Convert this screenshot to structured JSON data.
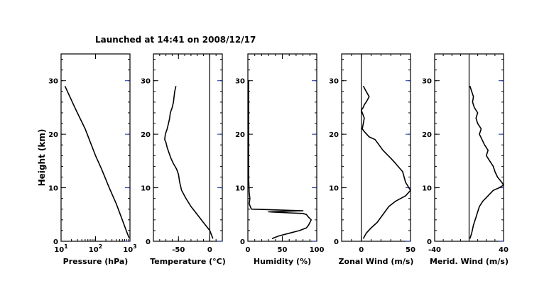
{
  "title": "Launched at 14:41 on 2008/12/17",
  "ylabel": "Height (km)",
  "colors": {
    "ink": "#000000",
    "right_ticks": "#1a2fa0",
    "background": "#ffffff"
  },
  "chart_data": [
    {
      "type": "line",
      "xlabel": "Pressure (hPa)",
      "xscale": "log",
      "xlim": [
        10,
        1000
      ],
      "xticks": [
        {
          "v": 10,
          "b": "10",
          "e": "1"
        },
        {
          "v": 100,
          "b": "10",
          "e": "2"
        },
        {
          "v": 1000,
          "b": "10",
          "e": "3"
        }
      ],
      "ylim": [
        0,
        35
      ],
      "yticks": [
        0,
        10,
        20,
        30
      ],
      "x": [
        13,
        25,
        50,
        100,
        150,
        250,
        400,
        600,
        800,
        950
      ],
      "y": [
        29,
        25,
        21,
        16,
        13.5,
        10,
        7,
        4,
        1.8,
        0.6
      ]
    },
    {
      "type": "line",
      "xlabel": "Temperature (°C)",
      "xlim": [
        -90,
        20
      ],
      "xticks": [
        -50,
        0
      ],
      "zero_line": 0,
      "ylim": [
        0,
        35
      ],
      "yticks": [
        0,
        10,
        20,
        30
      ],
      "x": [
        5,
        0,
        -10,
        -20,
        -30,
        -38,
        -45,
        -48,
        -50,
        -53,
        -58,
        -62,
        -65,
        -68,
        -70,
        -72,
        -71,
        -68,
        -66,
        -64,
        -63,
        -60,
        -58,
        -57,
        -56,
        -55,
        -54
      ],
      "y": [
        0.5,
        2,
        3.5,
        5,
        6.5,
        8,
        9.5,
        11,
        12.5,
        13.5,
        14.5,
        15.5,
        16.5,
        17.5,
        18.5,
        19,
        20,
        21,
        22,
        23,
        24,
        25,
        26,
        27,
        28,
        28.5,
        29
      ]
    },
    {
      "type": "line",
      "xlabel": "Humidity (%)",
      "xlim": [
        0,
        100
      ],
      "xticks": [
        0,
        50,
        100
      ],
      "ylim": [
        0,
        35
      ],
      "yticks": [
        0,
        10,
        20,
        30
      ],
      "x": [
        35,
        45,
        60,
        75,
        85,
        88,
        90,
        92,
        88,
        85,
        80,
        60,
        30,
        80,
        5,
        2,
        3,
        2,
        1,
        1,
        1,
        1
      ],
      "y": [
        0.5,
        1,
        1.5,
        2,
        2.5,
        3,
        3.5,
        4,
        4.5,
        5,
        5.2,
        5.3,
        5.5,
        5.7,
        6,
        7,
        8,
        9,
        12,
        18,
        25,
        30
      ]
    },
    {
      "type": "line",
      "xlabel": "Zonal Wind (m/s)",
      "xlim": [
        -20,
        50
      ],
      "xticks": [
        0,
        50
      ],
      "zero_line": 0,
      "ylim": [
        0,
        35
      ],
      "yticks": [
        0,
        10,
        20,
        30
      ],
      "x": [
        2,
        5,
        10,
        16,
        20,
        24,
        28,
        35,
        45,
        50,
        45,
        42,
        35,
        30,
        22,
        18,
        14,
        8,
        3,
        1,
        2,
        3,
        1,
        0,
        2,
        3,
        5,
        8,
        5,
        2
      ],
      "y": [
        0.5,
        1.5,
        2.5,
        3.5,
        4.5,
        5.5,
        6.5,
        7.5,
        8.5,
        9.5,
        11,
        13,
        14.5,
        15.5,
        17,
        18,
        19,
        19.5,
        20.5,
        21,
        22,
        23,
        24,
        24.5,
        25,
        25.5,
        26,
        27,
        28,
        29
      ]
    },
    {
      "type": "line",
      "xlabel": "Merid. Wind (m/s)",
      "xlim": [
        -40,
        40
      ],
      "xticks": [
        -40,
        40
      ],
      "zero_line": 0,
      "ylim": [
        0,
        35
      ],
      "yticks": [
        0,
        10,
        20,
        30
      ],
      "x": [
        1,
        3,
        5,
        8,
        10,
        12,
        16,
        22,
        28,
        35,
        40,
        38,
        33,
        30,
        28,
        24,
        20,
        22,
        18,
        15,
        12,
        14,
        10,
        8,
        10,
        6,
        4,
        5,
        3,
        1
      ],
      "y": [
        0.5,
        1.5,
        3,
        4.5,
        5.5,
        6.5,
        7.5,
        8.5,
        9.5,
        10,
        10.5,
        11,
        12,
        13,
        14,
        15,
        16,
        17,
        18,
        19,
        20,
        21,
        22,
        23,
        24,
        25,
        26,
        27,
        28,
        29
      ]
    }
  ]
}
